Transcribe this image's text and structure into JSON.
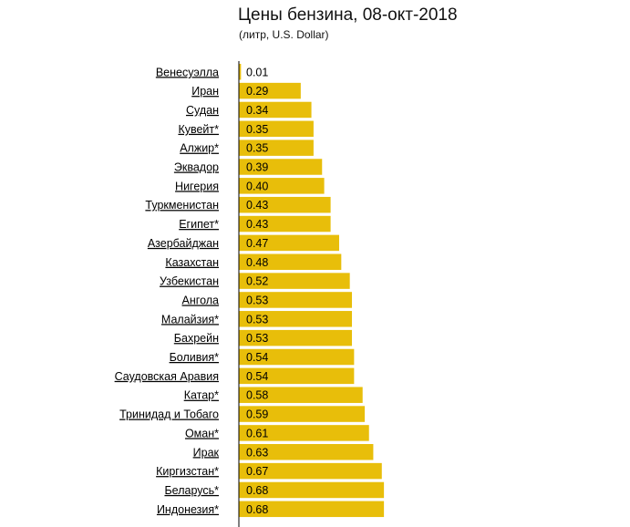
{
  "header": {
    "title": "Цены бензина, 08-окт-2018",
    "subtitle": "(литр, U.S. Dollar)"
  },
  "colors": {
    "bar": "#E8BE0A",
    "axis": "#000000"
  },
  "chart_data": {
    "type": "bar",
    "orientation": "horizontal",
    "title": "Цены бензина, 08-окт-2018",
    "subtitle": "(литр, U.S. Dollar)",
    "categories": [
      "Венесуэлла",
      "Иран",
      "Судан",
      "Кувейт*",
      "Алжир*",
      "Эквадор",
      "Нигерия",
      "Туркменистан",
      "Египет*",
      "Азербайджан",
      "Казахстан",
      "Узбекистан",
      "Ангола",
      "Малайзия*",
      "Бахрейн",
      "Боливия*",
      "Саудовская Аравия",
      "Катар*",
      "Тринидад и Тобаго",
      "Оман*",
      "Ирак",
      "Киргизстан*",
      "Беларусь*",
      "Индонезия*"
    ],
    "values": [
      0.01,
      0.29,
      0.34,
      0.35,
      0.35,
      0.39,
      0.4,
      0.43,
      0.43,
      0.47,
      0.48,
      0.52,
      0.53,
      0.53,
      0.53,
      0.54,
      0.54,
      0.58,
      0.59,
      0.61,
      0.63,
      0.67,
      0.68,
      0.68
    ],
    "value_labels": [
      "0.01",
      "0.29",
      "0.34",
      "0.35",
      "0.35",
      "0.39",
      "0.40",
      "0.43",
      "0.43",
      "0.47",
      "0.48",
      "0.52",
      "0.53",
      "0.53",
      "0.53",
      "0.54",
      "0.54",
      "0.58",
      "0.59",
      "0.61",
      "0.63",
      "0.67",
      "0.68",
      "0.68"
    ],
    "xlabel": "",
    "ylabel": "",
    "grid": false
  }
}
